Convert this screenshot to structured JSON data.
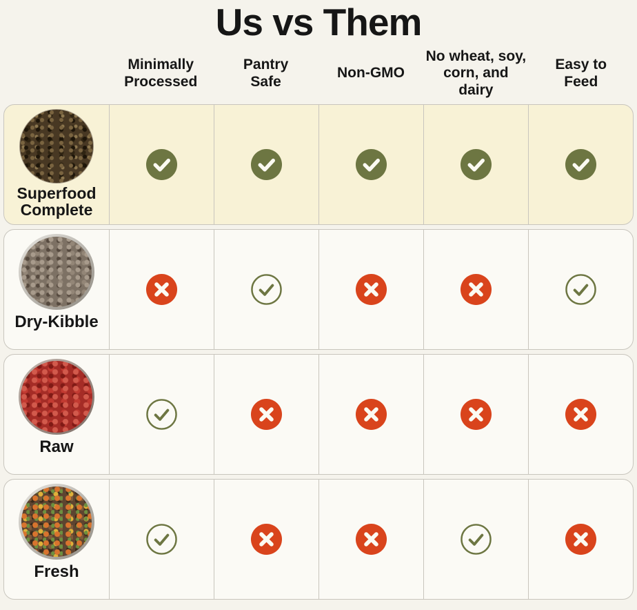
{
  "title": "Us vs Them",
  "columns": [
    {
      "label": "Minimally Processed"
    },
    {
      "label": "Pantry Safe"
    },
    {
      "label": "Non-GMO"
    },
    {
      "label": "No wheat, soy, corn, and dairy"
    },
    {
      "label": "Easy to Feed"
    }
  ],
  "badge_types": {
    "check-filled": "yes (filled green check)",
    "check-outline": "yes (outlined green check)",
    "cross": "no (red cross)"
  },
  "rows": [
    {
      "name": "Superfood Complete",
      "photo": "superfood-complete",
      "highlight": true,
      "values": [
        "check-filled",
        "check-filled",
        "check-filled",
        "check-filled",
        "check-filled"
      ]
    },
    {
      "name": "Dry-Kibble",
      "photo": "dry-kibble",
      "highlight": false,
      "values": [
        "cross",
        "check-outline",
        "cross",
        "cross",
        "check-outline"
      ]
    },
    {
      "name": "Raw",
      "photo": "raw",
      "highlight": false,
      "values": [
        "check-outline",
        "cross",
        "cross",
        "cross",
        "cross"
      ]
    },
    {
      "name": "Fresh",
      "photo": "fresh",
      "highlight": false,
      "values": [
        "check-outline",
        "cross",
        "cross",
        "check-outline",
        "cross"
      ]
    }
  ],
  "chart_data": {
    "type": "table",
    "title": "Us vs Them",
    "columns": [
      "Product",
      "Minimally Processed",
      "Pantry Safe",
      "Non-GMO",
      "No wheat, soy, corn, and dairy",
      "Easy to Feed"
    ],
    "rows": [
      [
        "Superfood Complete",
        "yes",
        "yes",
        "yes",
        "yes",
        "yes"
      ],
      [
        "Dry-Kibble",
        "no",
        "yes",
        "no",
        "no",
        "yes"
      ],
      [
        "Raw",
        "yes",
        "no",
        "no",
        "no",
        "no"
      ],
      [
        "Fresh",
        "yes",
        "no",
        "no",
        "yes",
        "no"
      ]
    ]
  },
  "colors": {
    "page_bg": "#f5f3ec",
    "highlight_row_bg": "#f8f2d6",
    "row_bg": "#fbfaf5",
    "check_green": "#6d7642",
    "cross_red": "#d9441c",
    "border_gray": "#c8c5bd",
    "text_black": "#161616",
    "icon_white": "#fbfaf2"
  }
}
